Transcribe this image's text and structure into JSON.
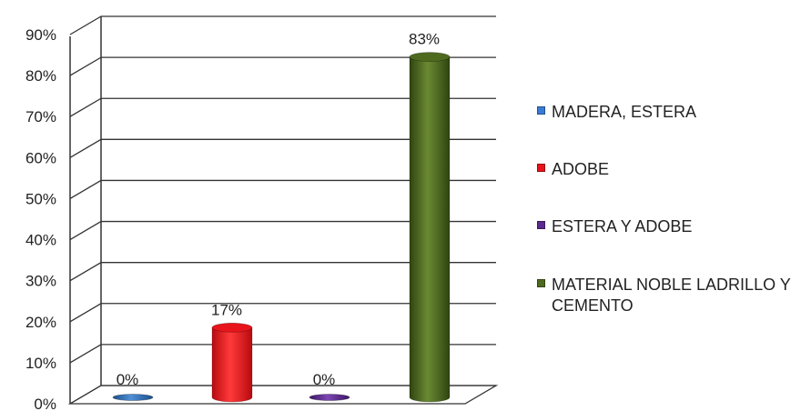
{
  "chart_data": {
    "type": "bar",
    "style": "3d-cylinder",
    "categories": [
      "MADERA, ESTERA",
      "ADOBE",
      "ESTERA Y ADOBE",
      "MATERIAL NOBLE LADRILLO Y CEMENTO"
    ],
    "values": [
      0,
      17,
      0,
      83
    ],
    "data_labels": [
      "0%",
      "17%",
      "0%",
      "83%"
    ],
    "colors": [
      "#2e6fb8",
      "#e8141b",
      "#5b2a8c",
      "#4e6a1f"
    ],
    "ylim": [
      0,
      90
    ],
    "y_ticks": [
      "0%",
      "10%",
      "20%",
      "30%",
      "40%",
      "50%",
      "60%",
      "70%",
      "80%",
      "90%"
    ],
    "grid": true,
    "legend_position": "right"
  }
}
